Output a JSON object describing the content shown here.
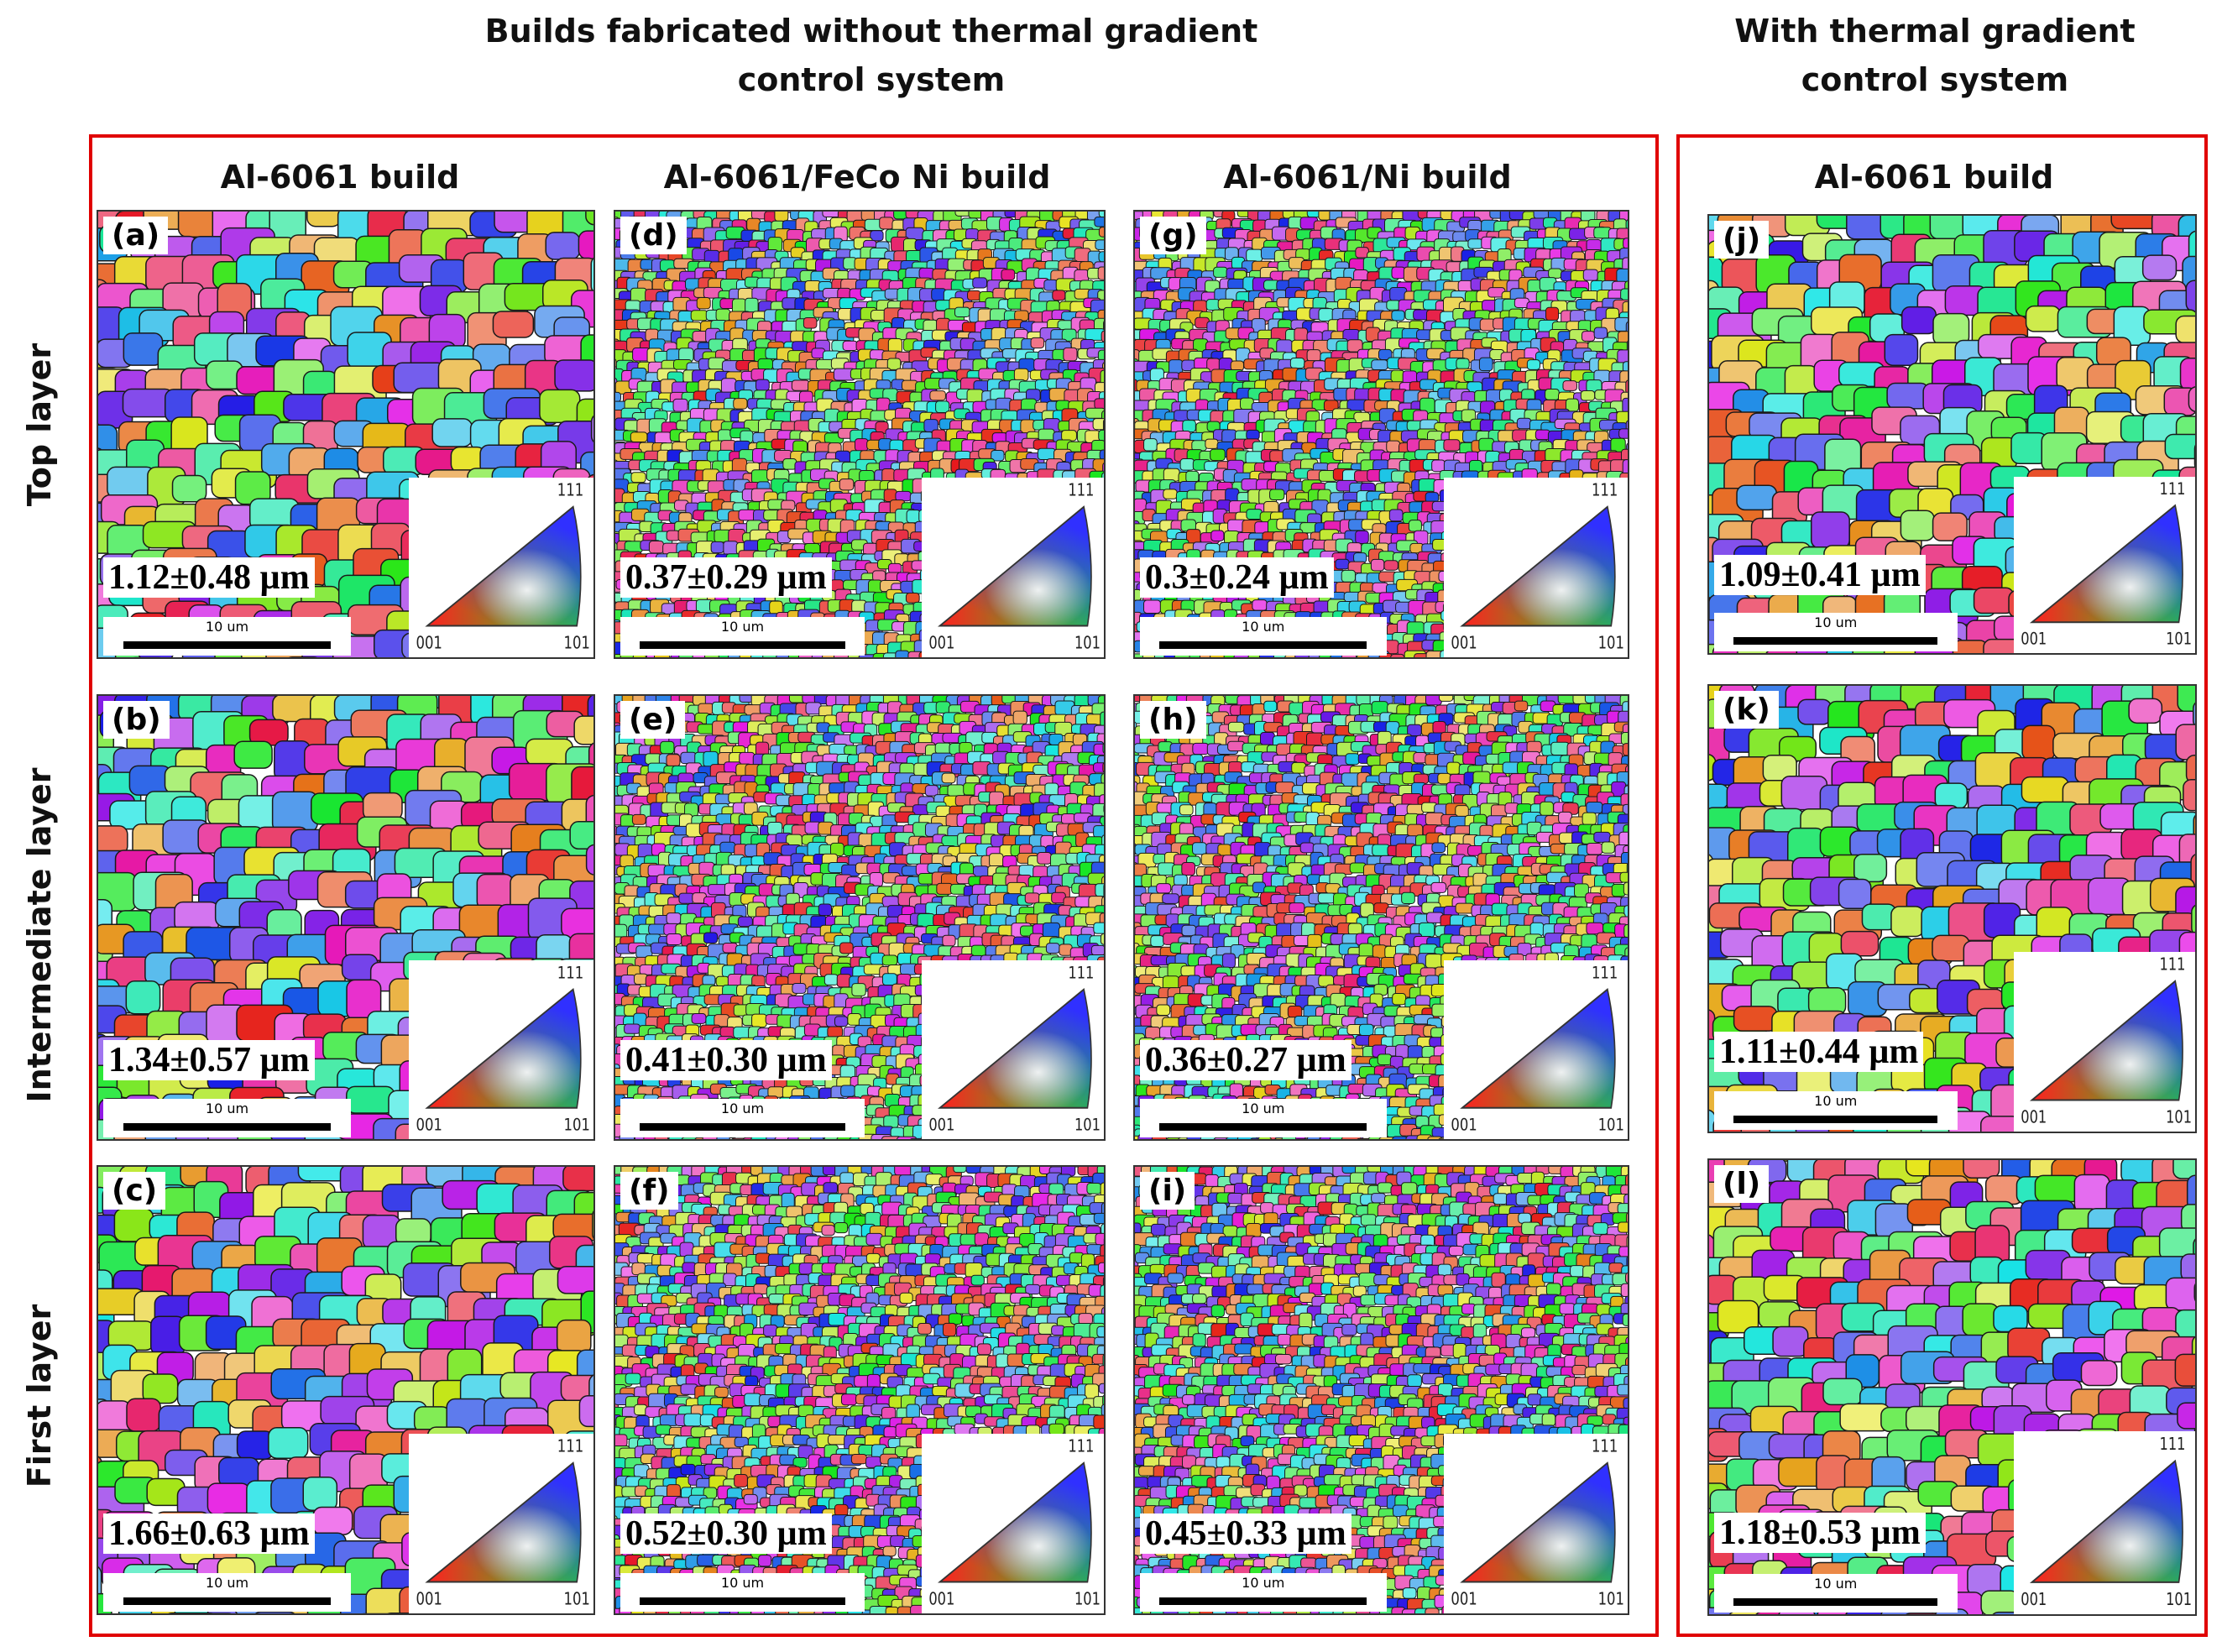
{
  "header": {
    "left_title": "Builds fabricated without thermal gradient control system",
    "right_title": "With thermal gradient control system"
  },
  "columns": [
    "Al-6061 build",
    "Al-6061/FeCo Ni build",
    "Al-6061/Ni build",
    "Al-6061 build"
  ],
  "rows": [
    "Top layer",
    "Intermediate layer",
    "First layer"
  ],
  "panels": [
    [
      {
        "label": "(a)",
        "grain_size": "1.12±0.48 µm",
        "scale_bar": "10 um"
      },
      {
        "label": "(b)",
        "grain_size": "1.34±0.57 µm",
        "scale_bar": "10 um"
      },
      {
        "label": "(c)",
        "grain_size": "1.66±0.63 µm",
        "scale_bar": "10 um"
      }
    ],
    [
      {
        "label": "(d)",
        "grain_size": "0.37±0.29 µm",
        "scale_bar": "10 um"
      },
      {
        "label": "(e)",
        "grain_size": "0.41±0.30 µm",
        "scale_bar": "10 um"
      },
      {
        "label": "(f)",
        "grain_size": "0.52±0.30 µm",
        "scale_bar": "10 um"
      }
    ],
    [
      {
        "label": "(g)",
        "grain_size": "0.3±0.24 µm",
        "scale_bar": "10 um"
      },
      {
        "label": "(h)",
        "grain_size": "0.36±0.27 µm",
        "scale_bar": "10 um"
      },
      {
        "label": "(i)",
        "grain_size": "0.45±0.33 µm",
        "scale_bar": "10 um"
      }
    ],
    [
      {
        "label": "(j)",
        "grain_size": "1.09±0.41 µm",
        "scale_bar": "10 um"
      },
      {
        "label": "(k)",
        "grain_size": "1.11±0.44 µm",
        "scale_bar": "10 um"
      },
      {
        "label": "(l)",
        "grain_size": "1.18±0.53 µm",
        "scale_bar": "10 um"
      }
    ]
  ],
  "ipf_legend": {
    "top": "111",
    "left": "001",
    "right": "101"
  }
}
